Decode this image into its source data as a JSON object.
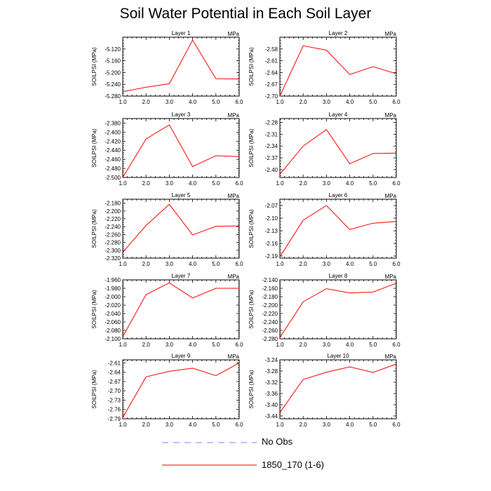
{
  "page": {
    "title": "Soil Water Potential in Each Soil Layer"
  },
  "colors": {
    "model": "#ff0000",
    "obs": "#8080ff",
    "axis": "#000000"
  },
  "legend": {
    "obs_label": "No Obs",
    "model_label": "1850_170 (1-6)"
  },
  "chart_data": [
    {
      "type": "line",
      "title": "Layer 1",
      "unit": "MPa",
      "ylabel": "SOILPSI  (MPa)",
      "x": [
        1,
        2,
        3,
        4,
        5,
        6
      ],
      "xticks": [
        "1.0",
        "2.0",
        "3.0",
        "4.0",
        "5.0",
        "6.0"
      ],
      "xlim": [
        1,
        6
      ],
      "ylim": [
        -5.28,
        -5.08
      ],
      "yticks": [
        "-5.280",
        "-5.240",
        "-5.200",
        "-5.160",
        "-5.120"
      ],
      "ytick_values": [
        -5.28,
        -5.24,
        -5.2,
        -5.16,
        -5.12
      ],
      "series": [
        {
          "name": "1850_170 (1-6)",
          "values": [
            -5.265,
            -5.25,
            -5.238,
            -5.09,
            -5.221,
            -5.222
          ]
        }
      ]
    },
    {
      "type": "line",
      "title": "Layer 2",
      "unit": "MPa",
      "ylabel": "SOILPSI  (MPa)",
      "x": [
        1,
        2,
        3,
        4,
        5,
        6
      ],
      "xticks": [
        "1.0",
        "2.0",
        "3.0",
        "4.0",
        "5.0",
        "6.0"
      ],
      "xlim": [
        1,
        6
      ],
      "ylim": [
        -2.7,
        -2.55
      ],
      "yticks": [
        "-2.70",
        "-2.67",
        "-2.64",
        "-2.61",
        "-2.58"
      ],
      "ytick_values": [
        -2.7,
        -2.67,
        -2.64,
        -2.61,
        -2.58
      ],
      "series": [
        {
          "name": "1850_170 (1-6)",
          "values": [
            -2.7,
            -2.572,
            -2.583,
            -2.645,
            -2.625,
            -2.643
          ]
        }
      ]
    },
    {
      "type": "line",
      "title": "Layer 3",
      "unit": "MPa",
      "ylabel": "SOILPSI  (MPa)",
      "x": [
        1,
        2,
        3,
        4,
        5,
        6
      ],
      "xticks": [
        "1.0",
        "2.0",
        "3.0",
        "4.0",
        "5.0",
        "6.0"
      ],
      "xlim": [
        1,
        6
      ],
      "ylim": [
        -2.5,
        -2.37
      ],
      "yticks": [
        "-2.500",
        "-2.480",
        "-2.460",
        "-2.440",
        "-2.420",
        "-2.400",
        "-2.380"
      ],
      "ytick_values": [
        -2.5,
        -2.48,
        -2.46,
        -2.44,
        -2.42,
        -2.4,
        -2.38
      ],
      "series": [
        {
          "name": "1850_170 (1-6)",
          "values": [
            -2.5,
            -2.415,
            -2.384,
            -2.476,
            -2.452,
            -2.454
          ]
        }
      ]
    },
    {
      "type": "line",
      "title": "Layer 4",
      "unit": "MPa",
      "ylabel": "SOILPSI  (MPa)",
      "x": [
        1,
        2,
        3,
        4,
        5,
        6
      ],
      "xticks": [
        "1.0",
        "2.0",
        "3.0",
        "4.0",
        "5.0",
        "6.0"
      ],
      "xlim": [
        1,
        6
      ],
      "ylim": [
        -2.42,
        -2.27
      ],
      "yticks": [
        "-2.40",
        "-2.37",
        "-2.34",
        "-2.31",
        "-2.28"
      ],
      "ytick_values": [
        -2.4,
        -2.37,
        -2.34,
        -2.31,
        -2.28
      ],
      "series": [
        {
          "name": "1850_170 (1-6)",
          "values": [
            -2.412,
            -2.34,
            -2.298,
            -2.385,
            -2.359,
            -2.358
          ]
        }
      ]
    },
    {
      "type": "line",
      "title": "Layer 5",
      "unit": "MPa",
      "ylabel": "SOILPSI  (MPa)",
      "x": [
        1,
        2,
        3,
        4,
        5,
        6
      ],
      "xticks": [
        "1.0",
        "2.0",
        "3.0",
        "4.0",
        "5.0",
        "6.0"
      ],
      "xlim": [
        1,
        6
      ],
      "ylim": [
        -2.32,
        -2.17
      ],
      "yticks": [
        "-2.320",
        "-2.300",
        "-2.280",
        "-2.260",
        "-2.240",
        "-2.220",
        "-2.200",
        "-2.180"
      ],
      "ytick_values": [
        -2.32,
        -2.3,
        -2.28,
        -2.26,
        -2.24,
        -2.22,
        -2.2,
        -2.18
      ],
      "series": [
        {
          "name": "1850_170 (1-6)",
          "values": [
            -2.305,
            -2.237,
            -2.183,
            -2.261,
            -2.239,
            -2.238
          ]
        }
      ]
    },
    {
      "type": "line",
      "title": "Layer 6",
      "unit": "MPa",
      "ylabel": "SOILPSI  (MPa)",
      "x": [
        1,
        2,
        3,
        4,
        5,
        6
      ],
      "xticks": [
        "1.0",
        "2.0",
        "3.0",
        "4.0",
        "5.0",
        "6.0"
      ],
      "xlim": [
        1,
        6
      ],
      "ylim": [
        -2.195,
        -2.055
      ],
      "yticks": [
        "-2.19",
        "-2.16",
        "-2.13",
        "-2.10",
        "-2.07"
      ],
      "ytick_values": [
        -2.19,
        -2.16,
        -2.13,
        -2.1,
        -2.07
      ],
      "series": [
        {
          "name": "1850_170 (1-6)",
          "values": [
            -2.192,
            -2.105,
            -2.07,
            -2.127,
            -2.112,
            -2.108
          ]
        }
      ]
    },
    {
      "type": "line",
      "title": "Layer 7",
      "unit": "MPa",
      "ylabel": "SOILPSI  (MPa)",
      "x": [
        1,
        2,
        3,
        4,
        5,
        6
      ],
      "xticks": [
        "1.0",
        "2.0",
        "3.0",
        "4.0",
        "5.0",
        "6.0"
      ],
      "xlim": [
        1,
        6
      ],
      "ylim": [
        -2.1,
        -1.96
      ],
      "yticks": [
        "-2.100",
        "-2.080",
        "-2.060",
        "-2.040",
        "-2.020",
        "-2.000",
        "-1.980",
        "-1.960"
      ],
      "ytick_values": [
        -2.1,
        -2.08,
        -2.06,
        -2.04,
        -2.02,
        -2.0,
        -1.98,
        -1.96
      ],
      "series": [
        {
          "name": "1850_170 (1-6)",
          "values": [
            -2.095,
            -1.995,
            -1.967,
            -2.003,
            -1.98,
            -1.98
          ]
        }
      ]
    },
    {
      "type": "line",
      "title": "Layer 8",
      "unit": "MPa",
      "ylabel": "SOILPSI  (MPa)",
      "x": [
        1,
        2,
        3,
        4,
        5,
        6
      ],
      "xticks": [
        "1.0",
        "2.0",
        "3.0",
        "4.0",
        "5.0",
        "6.0"
      ],
      "xlim": [
        1,
        6
      ],
      "ylim": [
        -2.28,
        -2.14
      ],
      "yticks": [
        "-2.280",
        "-2.260",
        "-2.240",
        "-2.220",
        "-2.200",
        "-2.180",
        "-2.160",
        "-2.140"
      ],
      "ytick_values": [
        -2.28,
        -2.26,
        -2.24,
        -2.22,
        -2.2,
        -2.18,
        -2.16,
        -2.14
      ],
      "series": [
        {
          "name": "1850_170 (1-6)",
          "values": [
            -2.277,
            -2.192,
            -2.161,
            -2.171,
            -2.169,
            -2.148
          ]
        }
      ]
    },
    {
      "type": "line",
      "title": "Layer 9",
      "unit": "MPa",
      "ylabel": "SOILPSI  (MPa)",
      "x": [
        1,
        2,
        3,
        4,
        5,
        6
      ],
      "xticks": [
        "1.0",
        "2.0",
        "3.0",
        "4.0",
        "5.0",
        "6.0"
      ],
      "xlim": [
        1,
        6
      ],
      "ylim": [
        -2.79,
        -2.6
      ],
      "yticks": [
        "-2.79",
        "-2.76",
        "-2.73",
        "-2.70",
        "-2.67",
        "-2.64",
        "-2.61"
      ],
      "ytick_values": [
        -2.79,
        -2.76,
        -2.73,
        -2.7,
        -2.67,
        -2.64,
        -2.61
      ],
      "series": [
        {
          "name": "1850_170 (1-6)",
          "values": [
            -2.786,
            -2.655,
            -2.637,
            -2.627,
            -2.651,
            -2.61
          ]
        }
      ]
    },
    {
      "type": "line",
      "title": "Layer 10",
      "unit": "MPa",
      "ylabel": "SOILPSI  (MPa)",
      "x": [
        1,
        2,
        3,
        4,
        5,
        6
      ],
      "xticks": [
        "1.0",
        "2.0",
        "3.0",
        "4.0",
        "5.0",
        "6.0"
      ],
      "xlim": [
        1,
        6
      ],
      "ylim": [
        -3.45,
        -3.24
      ],
      "yticks": [
        "-3.44",
        "-3.40",
        "-3.36",
        "-3.32",
        "-3.28",
        "-3.24"
      ],
      "ytick_values": [
        -3.44,
        -3.4,
        -3.36,
        -3.32,
        -3.28,
        -3.24
      ],
      "series": [
        {
          "name": "1850_170 (1-6)",
          "values": [
            -3.428,
            -3.31,
            -3.284,
            -3.265,
            -3.285,
            -3.255
          ]
        }
      ]
    }
  ]
}
